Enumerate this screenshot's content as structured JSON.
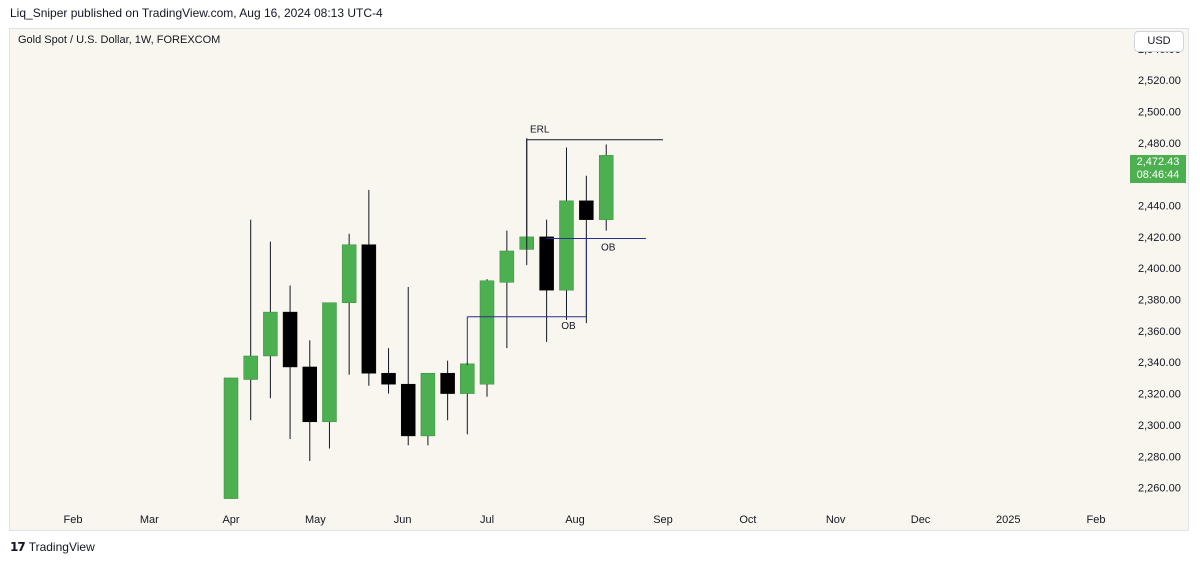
{
  "header": {
    "publisher_line": "Liq_Sniper published on TradingView.com, Aug 16, 2024 08:13 UTC-4"
  },
  "toolbar": {
    "currency_label": "USD"
  },
  "footer": {
    "brand_name": "TradingView",
    "logo_icon": "tradingview-logo-icon"
  },
  "chart_data": {
    "type": "candlestick",
    "title": "Gold Spot / U.S. Dollar, 1W, FOREXCOM",
    "y_axis": {
      "ylim": [
        2247,
        2552
      ],
      "ticks": [
        "2,260.00",
        "2,280.00",
        "2,300.00",
        "2,320.00",
        "2,340.00",
        "2,360.00",
        "2,380.00",
        "2,400.00",
        "2,420.00",
        "2,440.00",
        "2,460.00",
        "2,480.00",
        "2,500.00",
        "2,520.00",
        "2,540.00"
      ],
      "position": "right"
    },
    "x_axis": {
      "labels": [
        {
          "date": "2024-02-01",
          "label": "Feb"
        },
        {
          "date": "2024-03-01",
          "label": "Mar"
        },
        {
          "date": "2024-04-01",
          "label": "Apr"
        },
        {
          "date": "2024-05-01",
          "label": "May"
        },
        {
          "date": "2024-06-01",
          "label": "Jun"
        },
        {
          "date": "2024-07-01",
          "label": "Jul"
        },
        {
          "date": "2024-08-01",
          "label": "Aug"
        },
        {
          "date": "2024-09-01",
          "label": "Sep"
        },
        {
          "date": "2024-10-01",
          "label": "Oct"
        },
        {
          "date": "2024-11-01",
          "label": "Nov"
        },
        {
          "date": "2024-12-01",
          "label": "Dec"
        },
        {
          "date": "2025-01-01",
          "label": "2025"
        },
        {
          "date": "2025-02-01",
          "label": "Feb"
        }
      ]
    },
    "candles": [
      {
        "date": "2024-04-01",
        "open": 2253,
        "high": 2330,
        "low": 2253,
        "close": 2330
      },
      {
        "date": "2024-04-08",
        "open": 2329,
        "high": 2431,
        "low": 2303,
        "close": 2344
      },
      {
        "date": "2024-04-15",
        "open": 2344,
        "high": 2417,
        "low": 2317,
        "close": 2372
      },
      {
        "date": "2024-04-22",
        "open": 2372,
        "high": 2389,
        "low": 2291,
        "close": 2337
      },
      {
        "date": "2024-04-29",
        "open": 2337,
        "high": 2354,
        "low": 2277,
        "close": 2302
      },
      {
        "date": "2024-05-06",
        "open": 2302,
        "high": 2378,
        "low": 2285,
        "close": 2378
      },
      {
        "date": "2024-05-13",
        "open": 2378,
        "high": 2422,
        "low": 2332,
        "close": 2415
      },
      {
        "date": "2024-05-20",
        "open": 2415,
        "high": 2450,
        "low": 2325,
        "close": 2333
      },
      {
        "date": "2024-05-27",
        "open": 2333,
        "high": 2349,
        "low": 2320,
        "close": 2326
      },
      {
        "date": "2024-06-03",
        "open": 2326,
        "high": 2388,
        "low": 2287,
        "close": 2293
      },
      {
        "date": "2024-06-10",
        "open": 2293,
        "high": 2333,
        "low": 2287,
        "close": 2333
      },
      {
        "date": "2024-06-17",
        "open": 2333,
        "high": 2341,
        "low": 2303,
        "close": 2320
      },
      {
        "date": "2024-06-24",
        "open": 2320,
        "high": 2340,
        "low": 2294,
        "close": 2339
      },
      {
        "date": "2024-07-01",
        "open": 2326,
        "high": 2393,
        "low": 2318,
        "close": 2392
      },
      {
        "date": "2024-07-08",
        "open": 2391,
        "high": 2424,
        "low": 2349,
        "close": 2411
      },
      {
        "date": "2024-07-15",
        "open": 2412,
        "high": 2483,
        "low": 2402,
        "close": 2420
      },
      {
        "date": "2024-07-22",
        "open": 2420,
        "high": 2431,
        "low": 2353,
        "close": 2386
      },
      {
        "date": "2024-07-29",
        "open": 2386,
        "high": 2477,
        "low": 2367,
        "close": 2443
      },
      {
        "date": "2024-08-05",
        "open": 2443,
        "high": 2459,
        "low": 2365,
        "close": 2431
      },
      {
        "date": "2024-08-12",
        "open": 2431,
        "high": 2479,
        "low": 2424,
        "close": 2472
      }
    ],
    "last_price": "2,472.43",
    "countdown": "08:46:44",
    "annotations": [
      {
        "label": "ERL",
        "type": "level",
        "value": 2482,
        "from": "2024-07-15",
        "to": "2024-09-01"
      },
      {
        "label": "OB",
        "type": "level",
        "value": 2419,
        "from": "2024-07-22",
        "to": "2024-08-26"
      },
      {
        "label": "OB",
        "type": "level",
        "value": 2369,
        "from": "2024-06-24",
        "to": "2024-08-05"
      }
    ],
    "colors": {
      "up": "#4caf50",
      "down": "#000000",
      "background": "#f8f6ef",
      "ob_line": "#2a2e8c",
      "erl_line": "#131722"
    },
    "grid": false
  }
}
